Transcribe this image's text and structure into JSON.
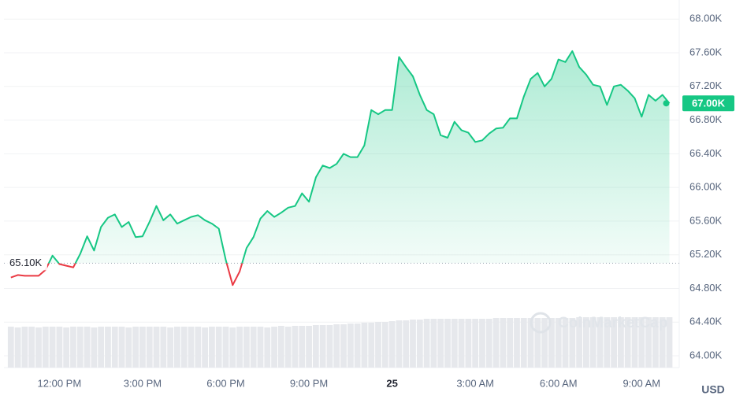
{
  "chart_data": {
    "type": "line",
    "x": [
      -1.75,
      -1.5,
      -1.25,
      -1,
      -0.75,
      -0.5,
      -0.25,
      0,
      0.25,
      0.5,
      0.75,
      1,
      1.25,
      1.5,
      1.75,
      2,
      2.25,
      2.5,
      2.75,
      3,
      3.25,
      3.5,
      3.75,
      4,
      4.25,
      4.5,
      4.75,
      5,
      5.25,
      5.5,
      5.75,
      6,
      6.25,
      6.5,
      6.75,
      7,
      7.25,
      7.5,
      7.75,
      8,
      8.25,
      8.5,
      8.75,
      9,
      9.25,
      9.5,
      9.75,
      10,
      10.25,
      10.5,
      10.75,
      11,
      11.25,
      11.5,
      11.75,
      12,
      12.25,
      12.5,
      12.75,
      13,
      13.25,
      13.5,
      13.75,
      14,
      14.25,
      14.5,
      14.75,
      15,
      15.25,
      15.5,
      15.75,
      16,
      16.25,
      16.5,
      16.75,
      17,
      17.25,
      17.5,
      17.75,
      18,
      18.25,
      18.5,
      18.75,
      19,
      19.25,
      19.5,
      19.75,
      20,
      20.25,
      20.5,
      20.75,
      21,
      21.25,
      21.5,
      21.75,
      22
    ],
    "values": [
      64930,
      64960,
      64950,
      64950,
      64950,
      65020,
      65190,
      65090,
      65070,
      65050,
      65210,
      65420,
      65250,
      65530,
      65640,
      65680,
      65530,
      65590,
      65410,
      65420,
      65590,
      65780,
      65610,
      65680,
      65570,
      65610,
      65650,
      65670,
      65610,
      65570,
      65510,
      65140,
      64840,
      65000,
      65280,
      65410,
      65630,
      65720,
      65650,
      65700,
      65760,
      65780,
      65930,
      65830,
      66120,
      66260,
      66230,
      66280,
      66400,
      66360,
      66360,
      66500,
      66920,
      66870,
      66920,
      66920,
      67550,
      67430,
      67320,
      67100,
      66920,
      66870,
      66620,
      66590,
      66780,
      66680,
      66650,
      66540,
      66560,
      66640,
      66700,
      66710,
      66820,
      66820,
      67080,
      67290,
      67360,
      67200,
      67290,
      67520,
      67490,
      67620,
      67430,
      67340,
      67220,
      67200,
      66980,
      67200,
      67220,
      67150,
      67060,
      66840,
      67100,
      67030,
      67100,
      67000
    ],
    "volume": [
      52,
      51,
      52,
      52,
      51,
      52,
      52,
      52,
      51,
      52,
      52,
      52,
      51,
      52,
      52,
      52,
      52,
      51,
      52,
      52,
      52,
      52,
      52,
      51,
      52,
      52,
      52,
      52,
      51,
      52,
      52,
      52,
      51,
      52,
      52,
      52,
      52,
      51,
      52,
      53,
      52,
      53,
      53,
      53,
      54,
      54,
      54,
      55,
      55,
      56,
      56,
      57,
      57,
      58,
      58,
      59,
      60,
      60,
      61,
      61,
      62,
      62,
      62,
      62,
      62,
      62,
      62,
      62,
      62,
      62,
      63,
      63,
      63,
      63,
      63,
      63,
      63,
      63,
      63,
      63,
      63,
      63,
      64,
      64,
      64,
      64,
      64,
      64,
      64,
      64,
      64,
      64,
      64,
      64,
      64,
      64
    ],
    "up_color": "#16c784",
    "down_color": "#ea3943",
    "baseline": {
      "value": 65100,
      "label": "65.10K"
    },
    "current": {
      "value": 67000,
      "label": "67.00K"
    },
    "xlim": [
      -2,
      22.1
    ],
    "ylim": [
      63860,
      68180
    ],
    "xticks": [
      {
        "value": 0,
        "label": "12:00 PM"
      },
      {
        "value": 3,
        "label": "3:00 PM"
      },
      {
        "value": 6,
        "label": "6:00 PM"
      },
      {
        "value": 9,
        "label": "9:00 PM"
      },
      {
        "value": 12,
        "label": "25"
      },
      {
        "value": 15,
        "label": "3:00 AM"
      },
      {
        "value": 18,
        "label": "6:00 AM"
      },
      {
        "value": 21,
        "label": "9:00 AM"
      }
    ],
    "yticks": [
      {
        "value": 64000,
        "label": "64.00K"
      },
      {
        "value": 64400,
        "label": "64.40K"
      },
      {
        "value": 64800,
        "label": "64.80K"
      },
      {
        "value": 65200,
        "label": "65.20K"
      },
      {
        "value": 65600,
        "label": "65.60K"
      },
      {
        "value": 66000,
        "label": "66.00K"
      },
      {
        "value": 66400,
        "label": "66.40K"
      },
      {
        "value": 66800,
        "label": "66.80K"
      },
      {
        "value": 67200,
        "label": "67.20K"
      },
      {
        "value": 67600,
        "label": "67.60K"
      },
      {
        "value": 68000,
        "label": "68.00K"
      }
    ],
    "grid": true,
    "currency": "USD",
    "watermark": "CoinMarketCap"
  }
}
